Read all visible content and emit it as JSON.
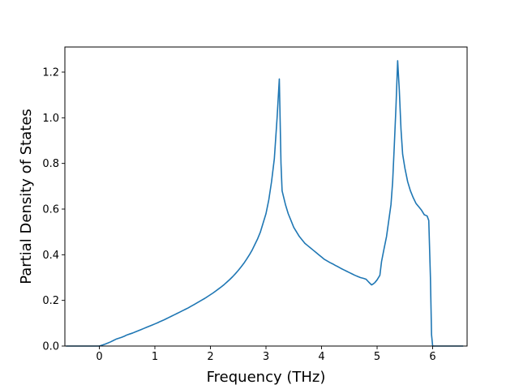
{
  "chart_data": {
    "type": "line",
    "title": "",
    "xlabel": "Frequency (THz)",
    "ylabel": "Partial Density of States",
    "xlim": [
      -0.62,
      6.62
    ],
    "ylim": [
      0.0,
      1.31
    ],
    "xticks": [
      0,
      1,
      2,
      3,
      4,
      5,
      6
    ],
    "xtick_labels": [
      "0",
      "1",
      "2",
      "3",
      "4",
      "5",
      "6"
    ],
    "yticks": [
      0.0,
      0.2,
      0.4,
      0.6,
      0.8,
      1.0,
      1.2
    ],
    "ytick_labels": [
      "0.0",
      "0.2",
      "0.4",
      "0.6",
      "0.8",
      "1.0",
      "1.2"
    ],
    "grid": false,
    "legend": "none",
    "line_color": "#1f77b4",
    "series": [
      {
        "x": [
          -0.6,
          -0.3,
          0.0,
          0.05,
          0.1,
          0.15,
          0.2,
          0.25,
          0.3,
          0.35,
          0.4,
          0.45,
          0.5,
          0.55,
          0.6,
          0.65,
          0.7,
          0.75,
          0.8,
          0.85,
          0.9,
          0.95,
          1.0,
          1.05,
          1.1,
          1.15,
          1.2,
          1.25,
          1.3,
          1.35,
          1.4,
          1.45,
          1.5,
          1.55,
          1.6,
          1.65,
          1.7,
          1.75,
          1.8,
          1.85,
          1.9,
          1.95,
          2.0,
          2.05,
          2.1,
          2.15,
          2.2,
          2.25,
          2.3,
          2.35,
          2.4,
          2.45,
          2.5,
          2.55,
          2.6,
          2.65,
          2.7,
          2.75,
          2.8,
          2.85,
          2.9,
          2.95,
          3.0,
          3.05,
          3.1,
          3.15,
          3.2,
          3.24,
          3.27,
          3.29,
          3.31,
          3.35,
          3.4,
          3.45,
          3.5,
          3.55,
          3.6,
          3.65,
          3.7,
          3.75,
          3.8,
          3.85,
          3.9,
          3.95,
          4.0,
          4.05,
          4.1,
          4.15,
          4.2,
          4.25,
          4.3,
          4.35,
          4.4,
          4.45,
          4.5,
          4.55,
          4.6,
          4.65,
          4.7,
          4.75,
          4.8,
          4.85,
          4.9,
          4.93,
          4.96,
          5.0,
          5.05,
          5.08,
          5.12,
          5.17,
          5.21,
          5.25,
          5.28,
          5.31,
          5.34,
          5.37,
          5.4,
          5.43,
          5.46,
          5.5,
          5.55,
          5.6,
          5.65,
          5.7,
          5.75,
          5.8,
          5.85,
          5.9,
          5.93,
          5.96,
          5.98,
          6.0,
          6.1,
          6.3,
          6.55
        ],
        "values": [
          0.0,
          0.0,
          0.0,
          0.004,
          0.008,
          0.013,
          0.018,
          0.024,
          0.03,
          0.034,
          0.038,
          0.043,
          0.049,
          0.053,
          0.057,
          0.062,
          0.067,
          0.072,
          0.077,
          0.082,
          0.087,
          0.092,
          0.097,
          0.102,
          0.108,
          0.113,
          0.119,
          0.125,
          0.131,
          0.137,
          0.143,
          0.149,
          0.155,
          0.161,
          0.167,
          0.174,
          0.181,
          0.188,
          0.195,
          0.202,
          0.209,
          0.217,
          0.225,
          0.233,
          0.242,
          0.251,
          0.26,
          0.27,
          0.281,
          0.292,
          0.304,
          0.317,
          0.331,
          0.346,
          0.362,
          0.38,
          0.399,
          0.42,
          0.445,
          0.47,
          0.5,
          0.54,
          0.58,
          0.64,
          0.72,
          0.82,
          1.0,
          1.17,
          0.8,
          0.68,
          0.66,
          0.62,
          0.58,
          0.55,
          0.52,
          0.5,
          0.48,
          0.465,
          0.45,
          0.44,
          0.43,
          0.42,
          0.41,
          0.4,
          0.39,
          0.38,
          0.373,
          0.366,
          0.36,
          0.353,
          0.347,
          0.34,
          0.334,
          0.328,
          0.322,
          0.316,
          0.31,
          0.305,
          0.3,
          0.297,
          0.293,
          0.28,
          0.268,
          0.272,
          0.278,
          0.29,
          0.31,
          0.37,
          0.42,
          0.48,
          0.55,
          0.62,
          0.72,
          0.88,
          1.05,
          1.25,
          1.12,
          0.95,
          0.84,
          0.78,
          0.72,
          0.68,
          0.65,
          0.625,
          0.61,
          0.595,
          0.575,
          0.57,
          0.55,
          0.3,
          0.05,
          0.0,
          0.0,
          0.0,
          0.0
        ]
      }
    ]
  }
}
